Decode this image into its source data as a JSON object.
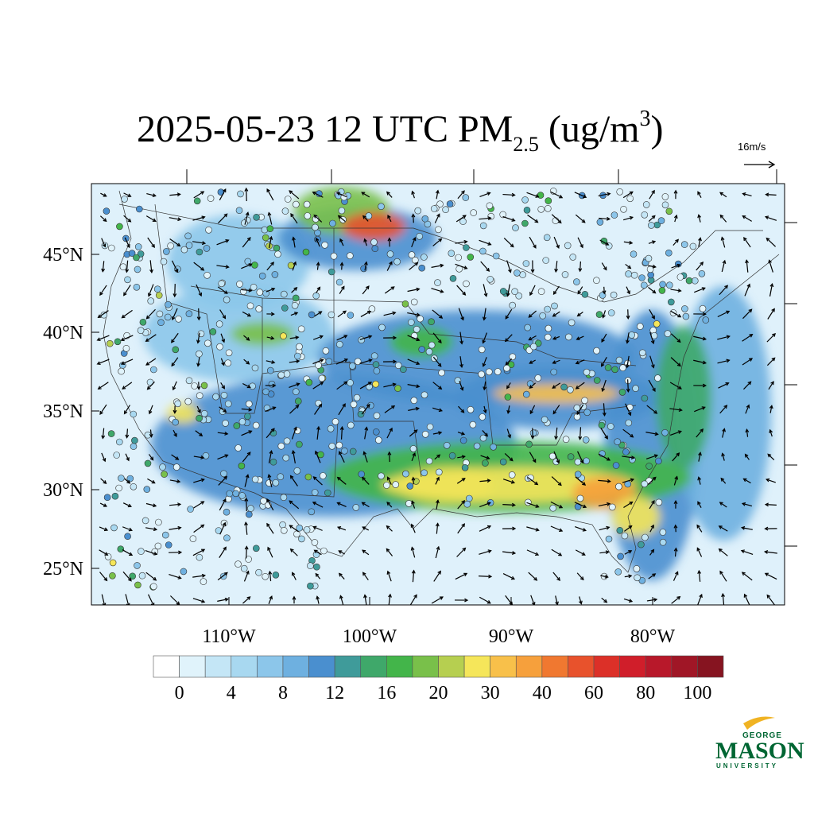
{
  "title": {
    "main": "2025-05-23 12 UTC PM",
    "sub": "2.5",
    "unit_open": " (ug/m",
    "sup": "3",
    "unit_close": ")"
  },
  "wind_reference": "16m/s",
  "latitude_labels": [
    "45°N",
    "40°N",
    "35°N",
    "30°N",
    "25°N"
  ],
  "longitude_labels": [
    "110°W",
    "100°W",
    "90°W",
    "80°W"
  ],
  "colorbar": {
    "colors": [
      "#ffffff",
      "#e0f3fb",
      "#c4e6f6",
      "#a8d8f0",
      "#8cc6ea",
      "#6eb0e0",
      "#4a8fcf",
      "#3f9b9a",
      "#3fa86a",
      "#43b54a",
      "#79c04a",
      "#b6cf50",
      "#f5e65a",
      "#f8c04a",
      "#f6a03c",
      "#f07830",
      "#e8522c",
      "#dc3028",
      "#d01e2a",
      "#b8182a",
      "#a01626",
      "#861420"
    ],
    "labels": [
      "0",
      "4",
      "8",
      "12",
      "16",
      "20",
      "30",
      "40",
      "60",
      "80",
      "100"
    ]
  },
  "logo": {
    "top": "GEORGE",
    "name": "MASON",
    "bottom": "UNIVERSITY"
  }
}
